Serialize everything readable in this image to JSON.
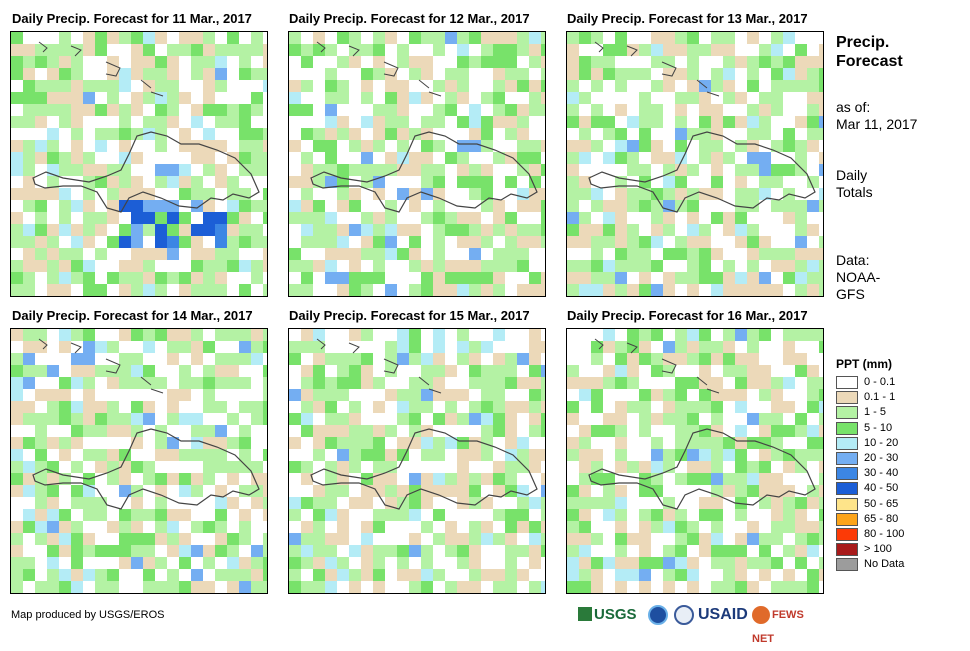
{
  "panels": [
    {
      "title": "Daily Precip. Forecast for 11 Mar., 2017",
      "seed": 11
    },
    {
      "title": "Daily Precip. Forecast for 12 Mar., 2017",
      "seed": 12
    },
    {
      "title": "Daily Precip. Forecast for 13 Mar., 2017",
      "seed": 13
    },
    {
      "title": "Daily Precip. Forecast for 14 Mar., 2017",
      "seed": 14
    },
    {
      "title": "Daily Precip. Forecast for 15 Mar., 2017",
      "seed": 15
    },
    {
      "title": "Daily Precip. Forecast for 16 Mar., 2017",
      "seed": 16
    }
  ],
  "side": {
    "title_line1": "Precip.",
    "title_line2": "Forecast",
    "asof_label": "as of:",
    "asof_date": "Mar 11, 2017",
    "totals_line1": "Daily",
    "totals_line2": "Totals",
    "data_line1": "Data:",
    "data_line2": "NOAA-",
    "data_line3": "GFS"
  },
  "legend": {
    "title": "PPT (mm)",
    "items": [
      {
        "label": "0 - 0.1",
        "color": "#ffffff"
      },
      {
        "label": "0.1 - 1",
        "color": "#ecd9b9"
      },
      {
        "label": "1 - 5",
        "color": "#b4f2a4"
      },
      {
        "label": "5 - 10",
        "color": "#78e26a"
      },
      {
        "label": "10 - 20",
        "color": "#b4ecf6"
      },
      {
        "label": "20 - 30",
        "color": "#74aef2"
      },
      {
        "label": "30 - 40",
        "color": "#3c86e4"
      },
      {
        "label": "40 - 50",
        "color": "#1c5ed6"
      },
      {
        "label": "50 - 65",
        "color": "#fee48a"
      },
      {
        "label": "65 - 80",
        "color": "#fca41a"
      },
      {
        "label": "80 - 100",
        "color": "#fc3a06"
      },
      {
        "label": "> 100",
        "color": "#a81a1a"
      },
      {
        "label": "No Data",
        "color": "#9c9c9c"
      }
    ]
  },
  "footer": {
    "credit": "Map produced by USGS/EROS",
    "logos": [
      "USGS",
      "USAID",
      "FEWS NET"
    ]
  }
}
